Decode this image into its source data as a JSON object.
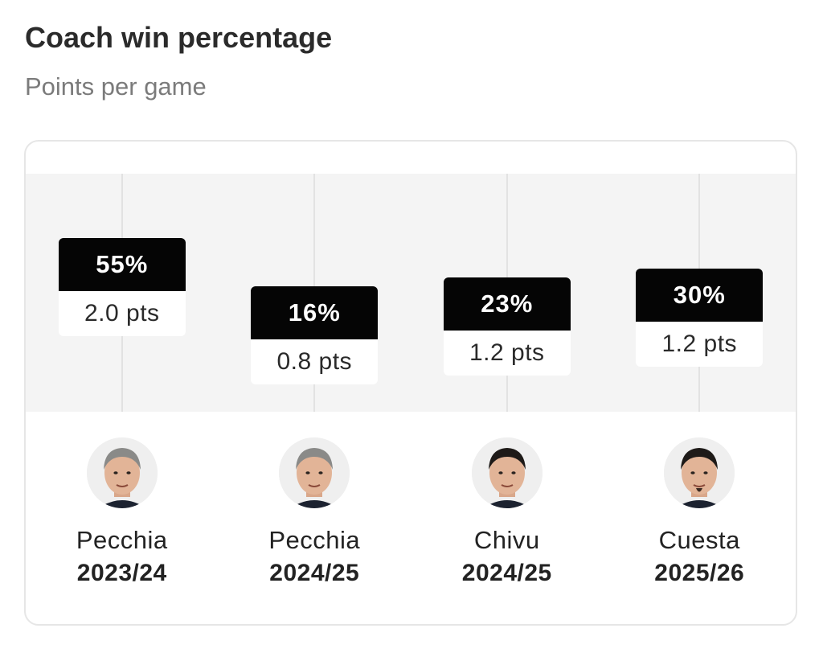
{
  "header": {
    "title": "Coach win percentage",
    "subtitle": "Points per game"
  },
  "colors": {
    "label_background": "#050505",
    "plot_background": "#f4f4f4",
    "card_border": "#e6e6e6"
  },
  "chart_data": {
    "type": "bar",
    "title": "Coach win percentage",
    "subtitle": "Points per game",
    "categories": [
      "Pecchia 2023/24",
      "Pecchia 2024/25",
      "Chivu 2024/25",
      "Cuesta 2025/26"
    ],
    "values": [
      55,
      16,
      23,
      30
    ],
    "ylim": [
      0,
      100
    ],
    "grid": true,
    "items": [
      {
        "coach": "Pecchia",
        "season": "2023/24",
        "win_pct": 55,
        "win_label": "55%",
        "ppg": 2.0,
        "ppg_label": "2.0 pts",
        "avatar": "coach-portrait-icon"
      },
      {
        "coach": "Pecchia",
        "season": "2024/25",
        "win_pct": 16,
        "win_label": "16%",
        "ppg": 0.8,
        "ppg_label": "0.8 pts",
        "avatar": "coach-portrait-icon"
      },
      {
        "coach": "Chivu",
        "season": "2024/25",
        "win_pct": 23,
        "win_label": "23%",
        "ppg": 1.2,
        "ppg_label": "1.2 pts",
        "avatar": "coach-portrait-icon"
      },
      {
        "coach": "Cuesta",
        "season": "2025/26",
        "win_pct": 30,
        "win_label": "30%",
        "ppg": 1.2,
        "ppg_label": "1.2 pts",
        "avatar": "coach-portrait-icon"
      }
    ]
  }
}
